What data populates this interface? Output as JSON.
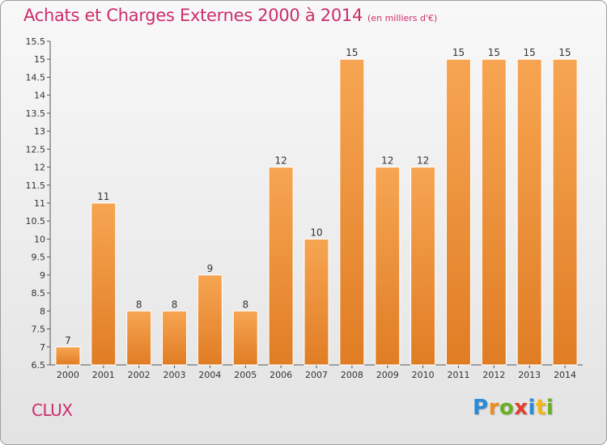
{
  "header": {
    "title": "Achats et Charges Externes 2000 à 2014",
    "subtitle": "(en milliers d'€)"
  },
  "commune": "CLUX",
  "brand": {
    "name": "Proxiti"
  },
  "colors": {
    "bar_top": "#f7a552",
    "bar_bottom": "#e07d24",
    "title": "#cc2d6b",
    "axis": "#555555",
    "label": "#333333"
  },
  "chart_data": {
    "type": "bar",
    "title": "Achats et Charges Externes 2000 à 2014",
    "subtitle": "(en milliers d'€)",
    "categories": [
      "2000",
      "2001",
      "2002",
      "2003",
      "2004",
      "2005",
      "2006",
      "2007",
      "2008",
      "2009",
      "2010",
      "2011",
      "2012",
      "2013",
      "2014"
    ],
    "values": [
      7,
      11,
      8,
      8,
      9,
      8,
      12,
      10,
      15,
      12,
      12,
      15,
      15,
      15,
      15
    ],
    "ylim": [
      6.5,
      15.5
    ],
    "yticks": [
      "6.5",
      "7",
      "7.5",
      "8",
      "8.5",
      "9",
      "9.5",
      "10",
      "10.5",
      "11",
      "11.5",
      "12",
      "12.5",
      "13",
      "13.5",
      "14",
      "14.5",
      "15",
      "15.5"
    ],
    "xlabel": "",
    "ylabel": "",
    "grid": false,
    "legend": "none",
    "data_labels": true
  }
}
